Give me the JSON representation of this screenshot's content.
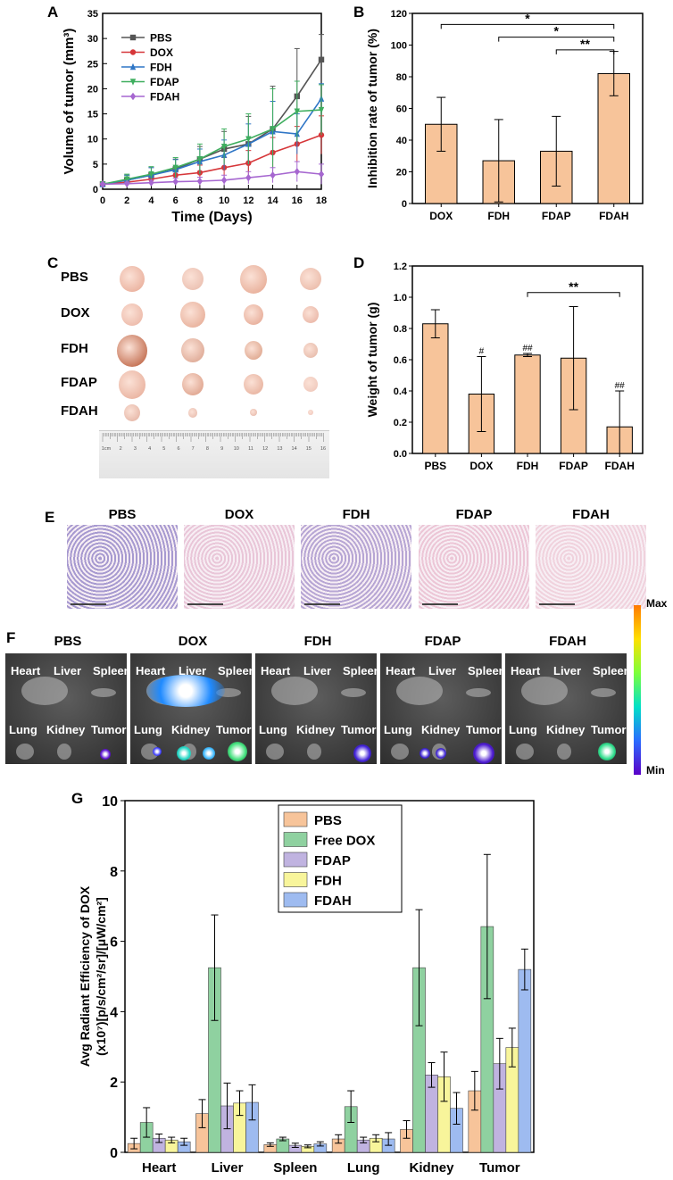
{
  "panels": {
    "A": "A",
    "B": "B",
    "C": "C",
    "D": "D",
    "E": "E",
    "F": "F",
    "G": "G"
  },
  "panel_c": {
    "rows": [
      "PBS",
      "DOX",
      "FDH",
      "FDAP",
      "FDAH"
    ],
    "ruler_ticks": [
      "1cm",
      "2",
      "3",
      "4",
      "5",
      "6",
      "7",
      "8",
      "9",
      "10",
      "11",
      "12",
      "13",
      "14",
      "15",
      "16"
    ]
  },
  "panel_e": {
    "titles": [
      "PBS",
      "DOX",
      "FDH",
      "FDAP",
      "FDAH"
    ],
    "colors": [
      "#a79ad0",
      "#e9c6d8",
      "#b7a6d4",
      "#ecc6d6",
      "#f0d2dd"
    ]
  },
  "panel_f": {
    "titles": [
      "PBS",
      "DOX",
      "FDH",
      "FDAP",
      "FDAH"
    ],
    "organs_top": [
      "Heart",
      "Liver",
      "Spleen"
    ],
    "organs_bottom": [
      "Lung",
      "Kidney",
      "Tumor"
    ],
    "colorbar_max": "Max",
    "colorbar_min": "Min"
  },
  "chart_data": [
    {
      "id": "A",
      "type": "line",
      "xlabel": "Time (Days)",
      "ylabel": "Volume of tumor (mm³)",
      "xlim": [
        0,
        18
      ],
      "ylim": [
        0,
        35
      ],
      "xticks": [
        0,
        2,
        4,
        6,
        8,
        10,
        12,
        14,
        16,
        18
      ],
      "yticks": [
        0,
        5,
        10,
        15,
        20,
        25,
        30,
        35
      ],
      "legend_position": "top-left",
      "series": [
        {
          "name": "PBS",
          "color": "#555555",
          "marker": "square",
          "x": [
            0,
            2,
            4,
            6,
            8,
            10,
            12,
            14,
            16,
            18
          ],
          "y": [
            1,
            1.8,
            2.8,
            4,
            6,
            8,
            9,
            12,
            18.5,
            25.8
          ],
          "err": [
            0.4,
            1,
            1.5,
            2,
            2.5,
            3.5,
            5.5,
            8.5,
            9.5,
            5
          ]
        },
        {
          "name": "DOX",
          "color": "#d6373a",
          "marker": "circle",
          "x": [
            0,
            2,
            4,
            6,
            8,
            10,
            12,
            14,
            16,
            18
          ],
          "y": [
            1,
            1.4,
            2,
            2.8,
            3.3,
            4.3,
            5.2,
            7.3,
            9,
            10.8
          ],
          "err": [
            0.3,
            0.6,
            1,
            1.2,
            1.5,
            2,
            2.5,
            3,
            3.5,
            3.8
          ]
        },
        {
          "name": "FDH",
          "color": "#2f76c6",
          "marker": "triangle-up",
          "x": [
            0,
            2,
            4,
            6,
            8,
            10,
            12,
            14,
            16,
            18
          ],
          "y": [
            1,
            1.8,
            2.8,
            3.9,
            5.5,
            6.8,
            9,
            11.5,
            11,
            18
          ],
          "err": [
            0.3,
            1,
            1.5,
            2,
            2.5,
            3,
            4,
            6,
            4,
            3
          ]
        },
        {
          "name": "FDAP",
          "color": "#3fae5f",
          "marker": "triangle-down",
          "x": [
            0,
            2,
            4,
            6,
            8,
            10,
            12,
            14,
            16,
            18
          ],
          "y": [
            1,
            2,
            3,
            4.3,
            6,
            8.5,
            10,
            12,
            15.5,
            15.8
          ],
          "err": [
            0.3,
            1,
            1.5,
            2,
            3,
            3.5,
            5,
            8,
            6,
            5
          ]
        },
        {
          "name": "FDAH",
          "color": "#a667d0",
          "marker": "diamond",
          "x": [
            0,
            2,
            4,
            6,
            8,
            10,
            12,
            14,
            16,
            18
          ],
          "y": [
            1,
            1.1,
            1.3,
            1.5,
            1.6,
            1.8,
            2.3,
            2.8,
            3.5,
            3
          ],
          "err": [
            0.2,
            0.3,
            0.5,
            0.7,
            0.8,
            1,
            1.2,
            1.5,
            2,
            2
          ]
        }
      ]
    },
    {
      "id": "B",
      "type": "bar",
      "ylabel": "Inhibition rate of tumor (%)",
      "ylim": [
        0,
        120
      ],
      "yticks": [
        0,
        20,
        40,
        60,
        80,
        100,
        120
      ],
      "categories": [
        "DOX",
        "FDH",
        "FDAP",
        "FDAH"
      ],
      "values": [
        50,
        27,
        33,
        82
      ],
      "errors": [
        17,
        26,
        22,
        14
      ],
      "bar_color": "#f7c49a",
      "significance": [
        {
          "from": 0,
          "to": 3,
          "y": 113,
          "label": "*"
        },
        {
          "from": 1,
          "to": 3,
          "y": 105,
          "label": "*"
        },
        {
          "from": 2,
          "to": 3,
          "y": 97,
          "label": "**"
        }
      ]
    },
    {
      "id": "D",
      "type": "bar",
      "ylabel": "Weight of tumor (g)",
      "ylim": [
        0,
        1.2
      ],
      "yticks": [
        "0.0",
        "0.2",
        "0.4",
        "0.6",
        "0.8",
        "1.0",
        "1.2"
      ],
      "categories": [
        "PBS",
        "DOX",
        "FDH",
        "FDAP",
        "FDAH"
      ],
      "values": [
        0.83,
        0.38,
        0.63,
        0.61,
        0.17
      ],
      "errors": [
        0.09,
        0.24,
        0.01,
        0.33,
        0.23
      ],
      "bar_color": "#f7c49a",
      "annotations": [
        "",
        "#",
        "##",
        "",
        "##"
      ],
      "significance": [
        {
          "from": 2,
          "to": 4,
          "y": 1.03,
          "label": "**"
        }
      ]
    },
    {
      "id": "G",
      "type": "bar",
      "ylabel_line1": "Avg Radiant Efficiency of DOX",
      "ylabel_line2": "(x10⁷)[p/s/cm²/sr]/[μW/cm²]",
      "ylim": [
        0,
        10
      ],
      "yticks": [
        0,
        2,
        4,
        6,
        8,
        10
      ],
      "categories": [
        "Heart",
        "Liver",
        "Spleen",
        "Lung",
        "Kidney",
        "Tumor"
      ],
      "legend_position": "top-center",
      "series": [
        {
          "name": "PBS",
          "color": "#f7c49a",
          "values": [
            0.25,
            1.1,
            0.22,
            0.38,
            0.65,
            1.75
          ],
          "errors": [
            0.15,
            0.4,
            0.05,
            0.12,
            0.25,
            0.55
          ]
        },
        {
          "name": "Free DOX",
          "color": "#8fd1a0",
          "values": [
            0.85,
            5.25,
            0.38,
            1.3,
            5.25,
            6.42
          ],
          "errors": [
            0.42,
            1.5,
            0.05,
            0.45,
            1.65,
            2.05
          ]
        },
        {
          "name": "FDAP",
          "color": "#c0b3e0",
          "values": [
            0.4,
            1.32,
            0.2,
            0.35,
            2.2,
            2.52
          ],
          "errors": [
            0.12,
            0.65,
            0.06,
            0.08,
            0.35,
            0.72
          ]
        },
        {
          "name": "FDH",
          "color": "#f8f59b",
          "values": [
            0.35,
            1.4,
            0.17,
            0.4,
            2.15,
            2.98
          ],
          "errors": [
            0.08,
            0.35,
            0.04,
            0.1,
            0.7,
            0.55
          ]
        },
        {
          "name": "FDAH",
          "color": "#9ebbf0",
          "values": [
            0.3,
            1.42,
            0.24,
            0.38,
            1.25,
            5.2
          ],
          "errors": [
            0.1,
            0.5,
            0.06,
            0.18,
            0.45,
            0.58
          ]
        }
      ]
    }
  ]
}
